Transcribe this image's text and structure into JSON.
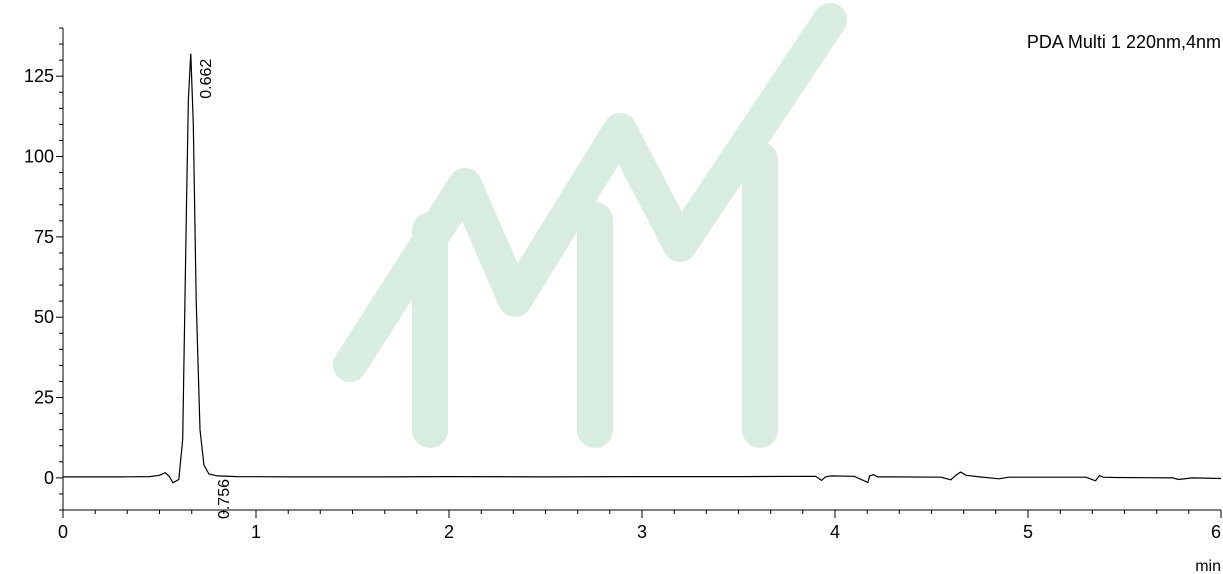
{
  "chart_data": {
    "type": "line",
    "title": "",
    "xlabel": "",
    "ylabel": "",
    "x_unit": "min",
    "xlim": [
      0,
      6
    ],
    "ylim": [
      -10,
      140
    ],
    "x_ticks": [
      0,
      1,
      2,
      3,
      4,
      5,
      6
    ],
    "y_ticks": [
      0,
      25,
      50,
      75,
      100,
      125
    ],
    "grid": false,
    "legend_position": "top-right",
    "series": [
      {
        "name": "PDA Multi 1 220nm,4nm",
        "color": "#000000",
        "x": [
          0,
          0.3,
          0.45,
          0.5,
          0.53,
          0.55,
          0.57,
          0.6,
          0.62,
          0.64,
          0.65,
          0.662,
          0.675,
          0.69,
          0.71,
          0.73,
          0.756,
          0.8,
          0.9,
          1.2,
          1.6,
          2.0,
          2.5,
          3.0,
          3.5,
          3.9,
          3.93,
          3.95,
          3.98,
          4.1,
          4.17,
          4.18,
          4.2,
          4.22,
          4.3,
          4.55,
          4.6,
          4.63,
          4.65,
          4.68,
          4.75,
          4.85,
          4.9,
          5.3,
          5.35,
          5.37,
          5.39,
          5.45,
          5.75,
          5.78,
          5.85,
          6.0
        ],
        "y": [
          0.3,
          0.3,
          0.4,
          0.8,
          1.6,
          0.5,
          -1.5,
          -0.5,
          12,
          85,
          118,
          132,
          110,
          55,
          15,
          4,
          1.2,
          0.6,
          0.4,
          0.3,
          0.3,
          0.4,
          0.3,
          0.4,
          0.4,
          0.5,
          -0.8,
          0.3,
          0.6,
          0.5,
          -1.4,
          0.6,
          1.0,
          0.3,
          0.3,
          0.2,
          -0.6,
          1.0,
          1.8,
          0.8,
          0.3,
          -0.3,
          0.2,
          0.2,
          -0.9,
          0.7,
          0.2,
          0.1,
          0.0,
          -0.5,
          0.0,
          -0.2
        ]
      }
    ],
    "annotations": [
      {
        "x": 0.662,
        "y": 132,
        "text": "0.662"
      },
      {
        "x": 0.756,
        "y": 1.2,
        "text": "0.756"
      }
    ]
  }
}
